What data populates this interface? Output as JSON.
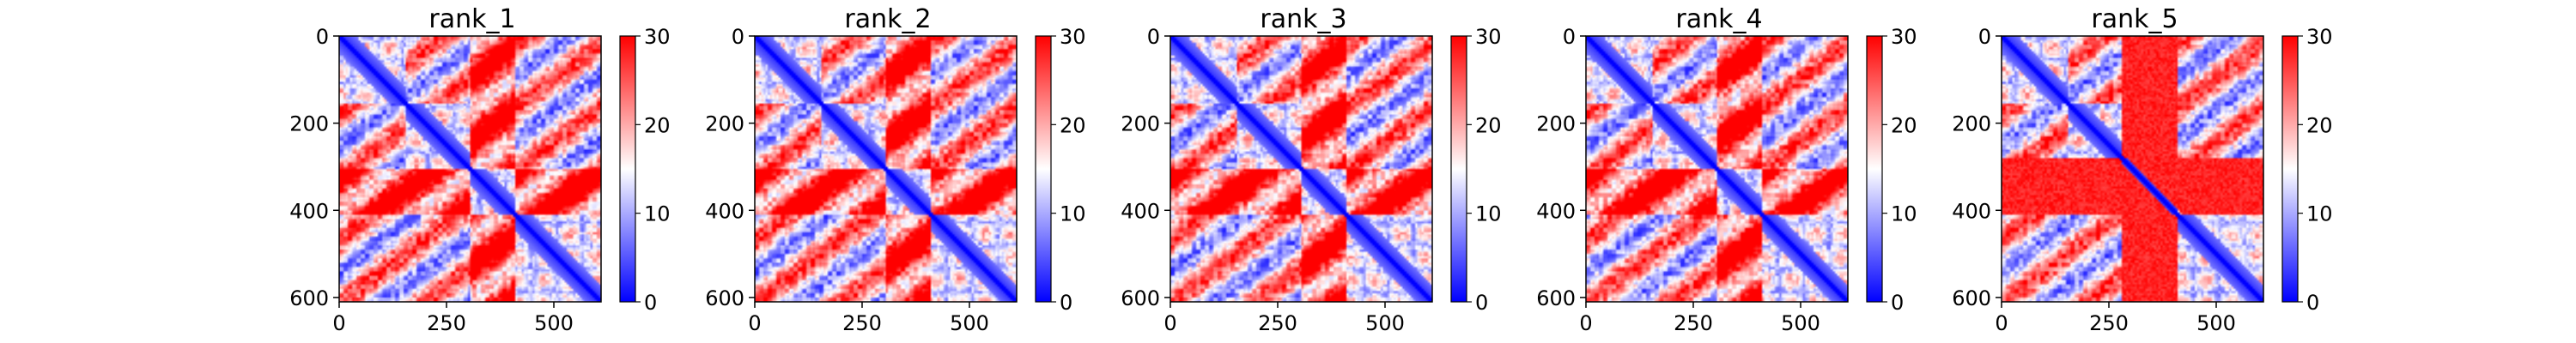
{
  "figure": {
    "panels": [
      {
        "title": "rank_1"
      },
      {
        "title": "rank_2"
      },
      {
        "title": "rank_3"
      },
      {
        "title": "rank_4"
      },
      {
        "title": "rank_5"
      }
    ]
  },
  "chart_data": [
    {
      "type": "heatmap",
      "title": "rank_1",
      "xlabel": "",
      "ylabel": "",
      "xlim": [
        0,
        610
      ],
      "ylim": [
        610,
        0
      ],
      "x_ticks": [
        "0",
        "250",
        "500"
      ],
      "y_ticks": [
        "0",
        "200",
        "400",
        "600"
      ],
      "colorbar": {
        "range": [
          0,
          30
        ],
        "ticks": [
          "0",
          "10",
          "20",
          "30"
        ],
        "cmap": "bwr"
      },
      "n_residues": 610,
      "domain_boundaries": [
        0,
        155,
        305,
        410,
        610
      ],
      "block_strength": 1.0
    },
    {
      "type": "heatmap",
      "title": "rank_2",
      "xlabel": "",
      "ylabel": "",
      "xlim": [
        0,
        610
      ],
      "ylim": [
        610,
        0
      ],
      "x_ticks": [
        "0",
        "250",
        "500"
      ],
      "y_ticks": [
        "0",
        "200",
        "400",
        "600"
      ],
      "colorbar": {
        "range": [
          0,
          30
        ],
        "ticks": [
          "0",
          "10",
          "20",
          "30"
        ],
        "cmap": "bwr"
      },
      "n_residues": 610,
      "domain_boundaries": [
        0,
        155,
        305,
        410,
        610
      ],
      "block_strength": 1.0
    },
    {
      "type": "heatmap",
      "title": "rank_3",
      "xlabel": "",
      "ylabel": "",
      "xlim": [
        0,
        610
      ],
      "ylim": [
        610,
        0
      ],
      "x_ticks": [
        "0",
        "250",
        "500"
      ],
      "y_ticks": [
        "0",
        "200",
        "400",
        "600"
      ],
      "colorbar": {
        "range": [
          0,
          30
        ],
        "ticks": [
          "0",
          "10",
          "20",
          "30"
        ],
        "cmap": "bwr"
      },
      "n_residues": 610,
      "domain_boundaries": [
        0,
        155,
        305,
        410,
        610
      ],
      "block_strength": 1.0
    },
    {
      "type": "heatmap",
      "title": "rank_4",
      "xlabel": "",
      "ylabel": "",
      "xlim": [
        0,
        610
      ],
      "ylim": [
        610,
        0
      ],
      "x_ticks": [
        "0",
        "250",
        "500"
      ],
      "y_ticks": [
        "0",
        "200",
        "400",
        "600"
      ],
      "colorbar": {
        "range": [
          0,
          30
        ],
        "ticks": [
          "0",
          "10",
          "20",
          "30"
        ],
        "cmap": "bwr"
      },
      "n_residues": 610,
      "domain_boundaries": [
        0,
        155,
        305,
        410,
        610
      ],
      "block_strength": 1.0
    },
    {
      "type": "heatmap",
      "title": "rank_5",
      "xlabel": "",
      "ylabel": "",
      "xlim": [
        0,
        610
      ],
      "ylim": [
        610,
        0
      ],
      "x_ticks": [
        "0",
        "250",
        "500"
      ],
      "y_ticks": [
        "0",
        "200",
        "400",
        "600"
      ],
      "colorbar": {
        "range": [
          0,
          30
        ],
        "ticks": [
          "0",
          "10",
          "20",
          "30"
        ],
        "cmap": "bwr"
      },
      "n_residues": 610,
      "domain_boundaries": [
        0,
        155,
        280,
        410,
        610
      ],
      "block_strength": 0.0
    }
  ]
}
